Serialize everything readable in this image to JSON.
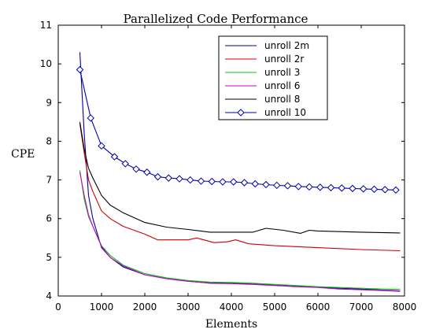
{
  "chart_data": {
    "type": "line",
    "title": "Parallelized Code Performance",
    "xlabel": "Elements",
    "ylabel": "CPE",
    "xlim": [
      0,
      8000
    ],
    "ylim": [
      4,
      11
    ],
    "x_ticks": [
      0,
      1000,
      2000,
      3000,
      4000,
      5000,
      6000,
      7000,
      8000
    ],
    "y_ticks": [
      4,
      5,
      6,
      7,
      8,
      9,
      10,
      11
    ],
    "grid": false,
    "legend_position": "top-right",
    "series": [
      {
        "name": "unroll 2m",
        "color": "#0000aa",
        "marker": "none",
        "x": [
          500,
          600,
          700,
          800,
          1000,
          1200,
          1500,
          2000,
          2500,
          3000,
          3500,
          4000,
          4500,
          5000,
          5500,
          6000,
          6500,
          7000,
          7500,
          7900
        ],
        "y": [
          10.3,
          8.2,
          6.6,
          6.0,
          5.25,
          5.0,
          4.75,
          4.55,
          4.45,
          4.38,
          4.34,
          4.33,
          4.32,
          4.28,
          4.25,
          4.23,
          4.2,
          4.18,
          4.15,
          4.13
        ]
      },
      {
        "name": "unroll 2r",
        "color": "#cc0000",
        "marker": "none",
        "x": [
          500,
          600,
          700,
          800,
          1000,
          1200,
          1500,
          2000,
          2300,
          2600,
          3000,
          3200,
          3600,
          3900,
          4100,
          4400,
          5000,
          6000,
          7000,
          7900
        ],
        "y": [
          8.45,
          7.7,
          7.0,
          6.7,
          6.2,
          6.0,
          5.8,
          5.6,
          5.45,
          5.45,
          5.45,
          5.5,
          5.38,
          5.4,
          5.45,
          5.35,
          5.3,
          5.25,
          5.2,
          5.17
        ]
      },
      {
        "name": "unroll 3",
        "color": "#00cc00",
        "marker": "none",
        "x": [
          500,
          600,
          700,
          800,
          1000,
          1200,
          1500,
          2000,
          2500,
          3000,
          3500,
          4000,
          4500,
          5000,
          5500,
          6000,
          6500,
          7000,
          7500,
          7900
        ],
        "y": [
          7.25,
          6.5,
          6.05,
          5.8,
          5.3,
          5.05,
          4.8,
          4.58,
          4.47,
          4.4,
          4.36,
          4.35,
          4.33,
          4.3,
          4.27,
          4.24,
          4.22,
          4.2,
          4.18,
          4.17
        ]
      },
      {
        "name": "unroll 6",
        "color": "#cc00cc",
        "marker": "none",
        "x": [
          500,
          600,
          700,
          800,
          1000,
          1200,
          1500,
          2000,
          2500,
          3000,
          3500,
          4000,
          4500,
          5000,
          5500,
          6000,
          6500,
          7000,
          7500,
          7900
        ],
        "y": [
          7.2,
          6.6,
          6.1,
          5.8,
          5.28,
          5.0,
          4.78,
          4.55,
          4.45,
          4.38,
          4.33,
          4.32,
          4.3,
          4.27,
          4.24,
          4.22,
          4.18,
          4.16,
          4.14,
          4.12
        ]
      },
      {
        "name": "unroll 8",
        "color": "#000000",
        "marker": "none",
        "x": [
          500,
          600,
          700,
          800,
          1000,
          1200,
          1500,
          2000,
          2500,
          3000,
          3500,
          4000,
          4500,
          4800,
          5200,
          5600,
          5800,
          6000,
          7000,
          7900
        ],
        "y": [
          8.5,
          7.8,
          7.3,
          7.05,
          6.6,
          6.35,
          6.15,
          5.9,
          5.78,
          5.72,
          5.65,
          5.65,
          5.65,
          5.75,
          5.7,
          5.62,
          5.7,
          5.68,
          5.65,
          5.63
        ]
      },
      {
        "name": "unroll 10",
        "color": "#0000aa",
        "marker": "diamond",
        "x": [
          500,
          750,
          1000,
          1300,
          1550,
          1800,
          2050,
          2300,
          2550,
          2800,
          3050,
          3300,
          3550,
          3800,
          4050,
          4300,
          4550,
          4800,
          5050,
          5300,
          5550,
          5800,
          6050,
          6300,
          6550,
          6800,
          7050,
          7300,
          7550,
          7800
        ],
        "y": [
          9.85,
          8.6,
          7.88,
          7.6,
          7.42,
          7.28,
          7.2,
          7.08,
          7.05,
          7.03,
          7.0,
          6.97,
          6.96,
          6.95,
          6.95,
          6.93,
          6.9,
          6.88,
          6.86,
          6.85,
          6.83,
          6.82,
          6.81,
          6.8,
          6.79,
          6.78,
          6.77,
          6.76,
          6.75,
          6.74
        ]
      }
    ]
  }
}
